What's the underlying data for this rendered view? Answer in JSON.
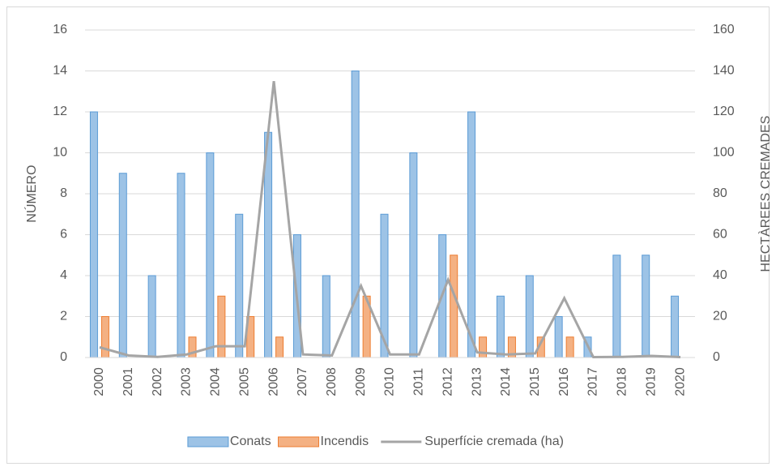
{
  "chart_data": {
    "type": "bar",
    "categories": [
      "2000",
      "2001",
      "2002",
      "2003",
      "2004",
      "2005",
      "2006",
      "2007",
      "2008",
      "2009",
      "2010",
      "2011",
      "2012",
      "2013",
      "2014",
      "2015",
      "2016",
      "2017",
      "2018",
      "2019",
      "2020"
    ],
    "y_label": "NÚMERO",
    "y2_label": "HECTÀREES CREMADES",
    "ylim": [
      0,
      16
    ],
    "yticks": [
      0,
      2,
      4,
      6,
      8,
      10,
      12,
      14,
      16
    ],
    "y2lim": [
      0,
      160
    ],
    "y2ticks": [
      0,
      20,
      40,
      60,
      80,
      100,
      120,
      140,
      160
    ],
    "grid": true,
    "legend": "bottom",
    "series": [
      {
        "name": "Conats",
        "type": "bar",
        "color": "#9dc3e6",
        "stroke": "#5b9bd5",
        "values": [
          12,
          9,
          4,
          9,
          10,
          7,
          11,
          6,
          4,
          14,
          7,
          10,
          6,
          12,
          3,
          4,
          2,
          1,
          5,
          5,
          3
        ]
      },
      {
        "name": "Incendis",
        "type": "bar",
        "color": "#f4b183",
        "stroke": "#ed7d31",
        "values": [
          2,
          0,
          0,
          1,
          3,
          2,
          1,
          0,
          0,
          3,
          0,
          0,
          5,
          1,
          1,
          1,
          1,
          0,
          0,
          0,
          0
        ]
      },
      {
        "name": "Superfície cremada (ha)",
        "type": "line",
        "axis": "y2",
        "color": "#a5a5a5",
        "values": [
          5,
          1,
          0.3,
          1.5,
          5.5,
          5.5,
          135,
          1.5,
          1,
          35,
          1.5,
          1.5,
          38,
          2.5,
          1.5,
          2,
          29,
          0.2,
          0.3,
          0.8,
          0.2
        ]
      }
    ]
  }
}
